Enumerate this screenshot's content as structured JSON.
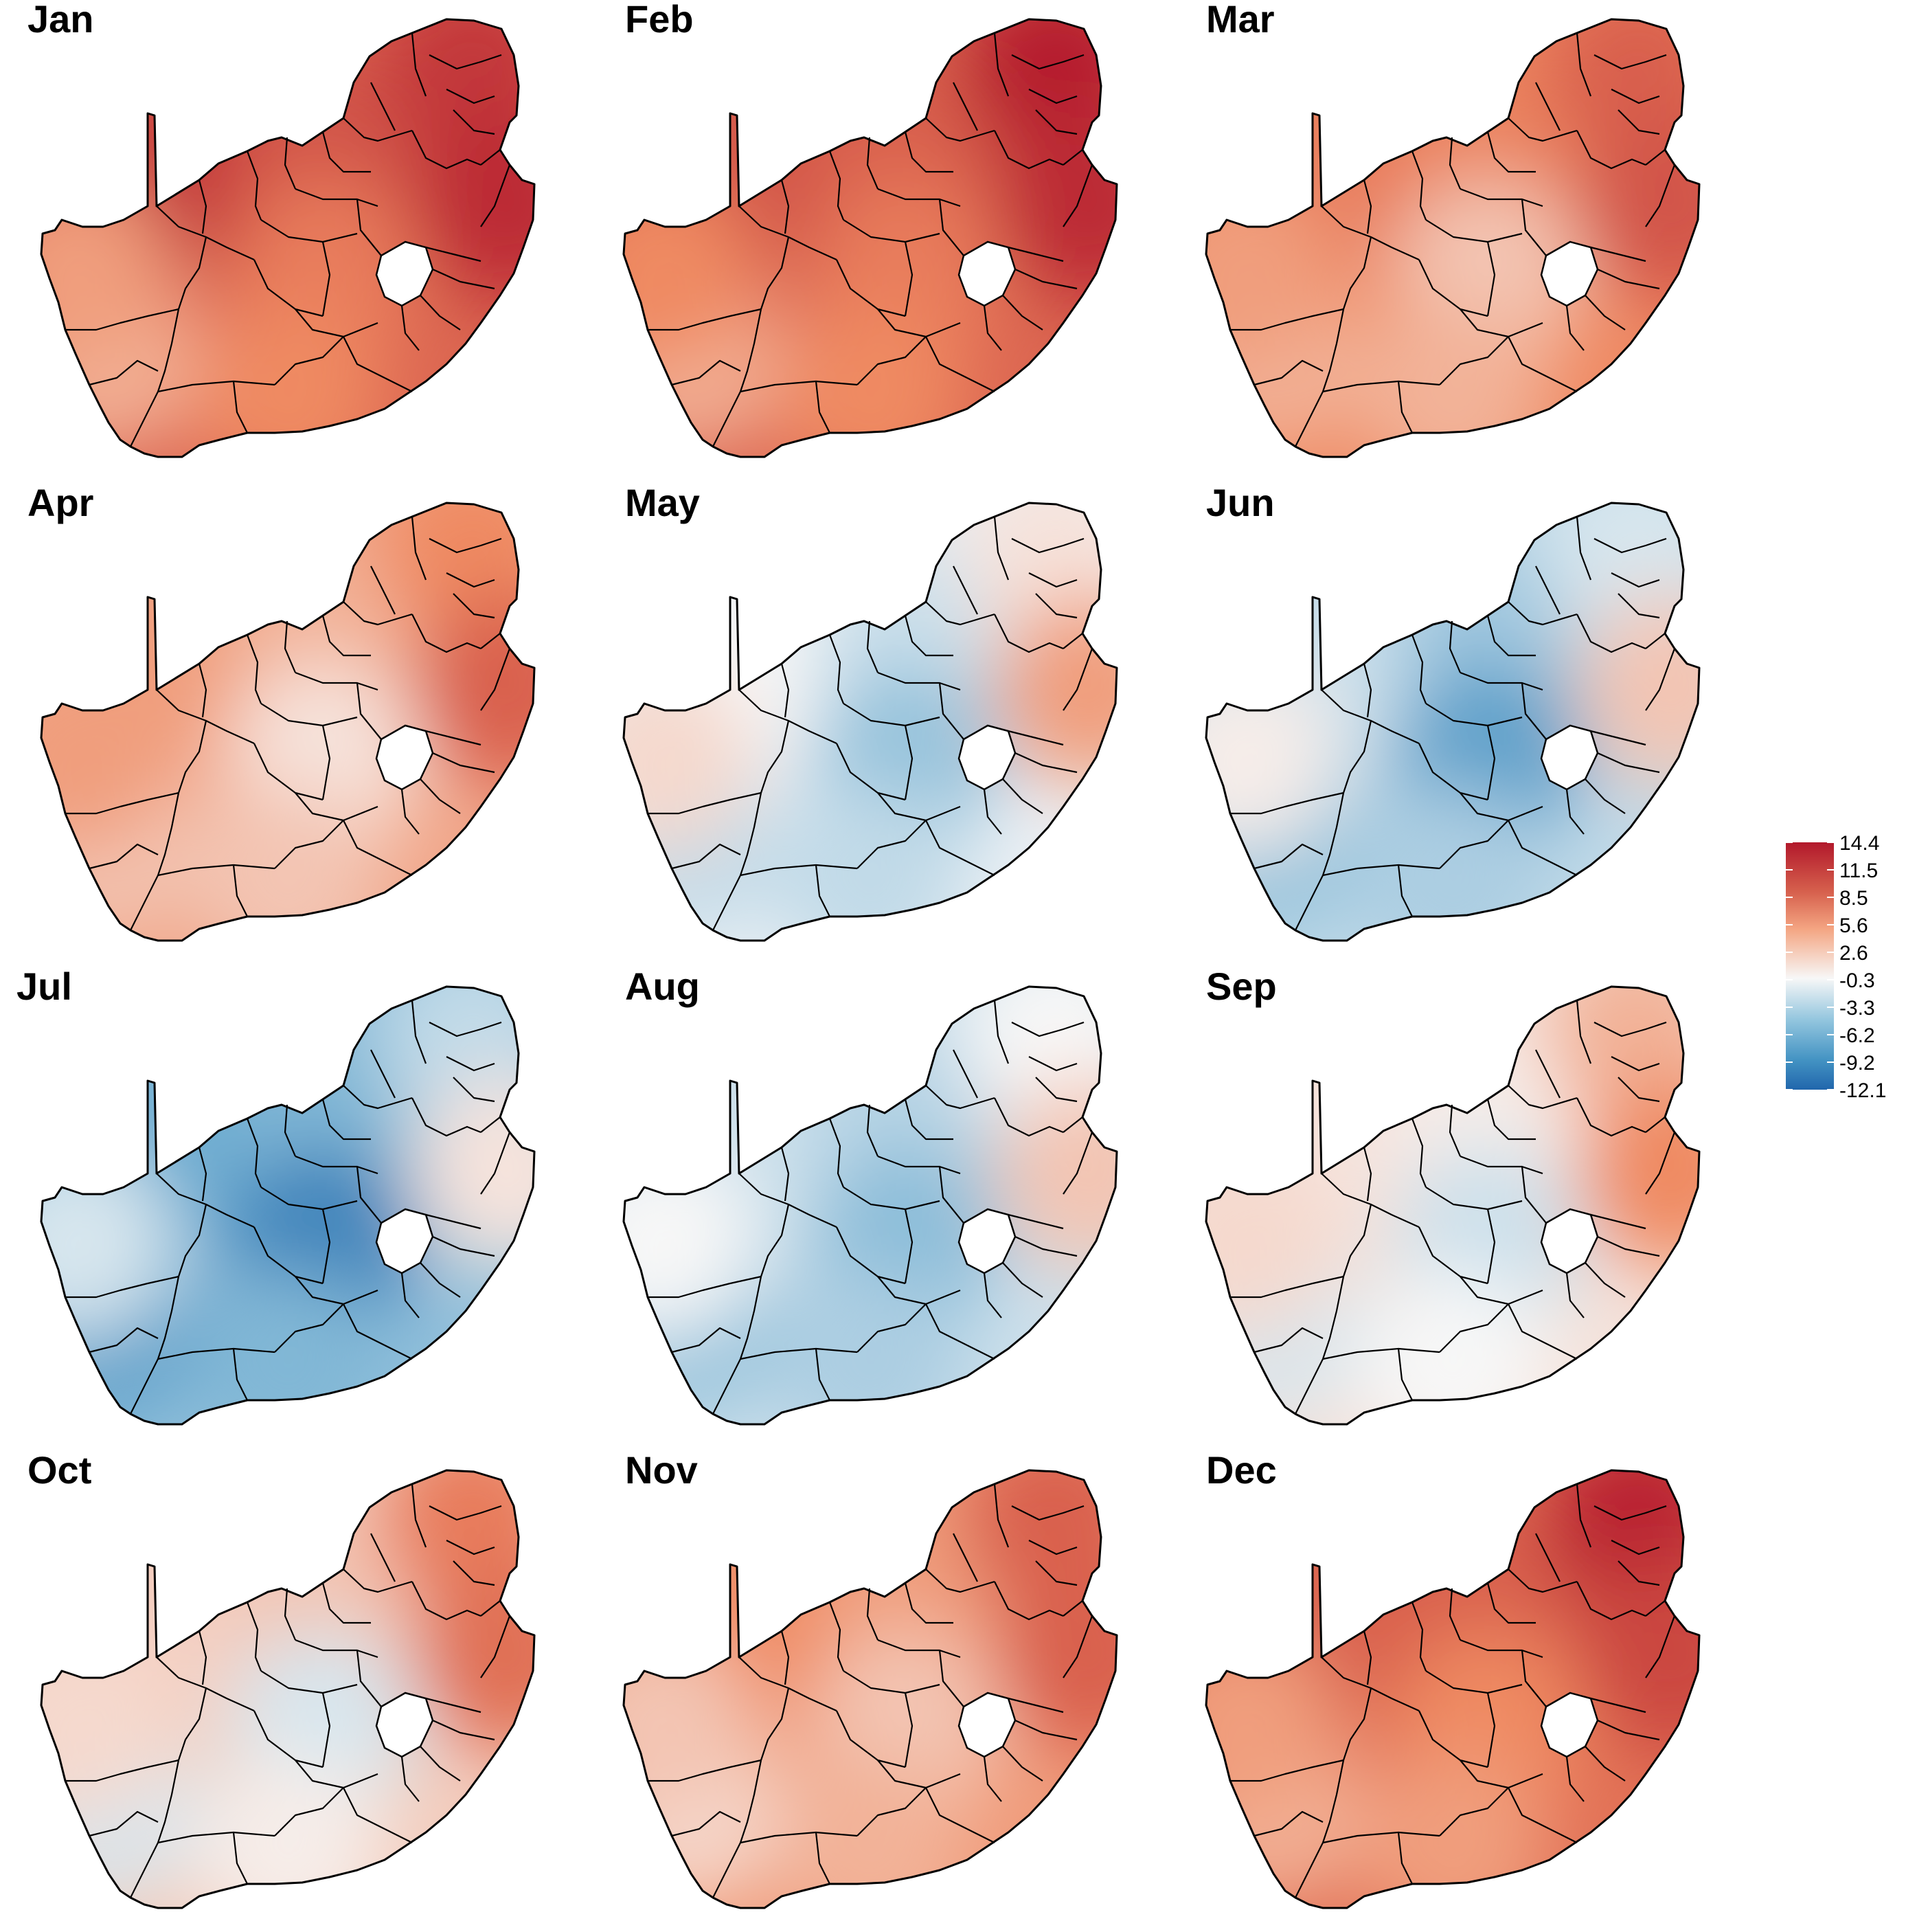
{
  "panels": [
    {
      "label": "Jan",
      "values": {
        "nw": 12.0,
        "n": 10.0,
        "ne": 12.0,
        "e": 13.0,
        "c": 7.0,
        "sw": 4.0,
        "s": 6.0,
        "w": 5.0
      }
    },
    {
      "label": "Feb",
      "values": {
        "nw": 10.0,
        "n": 9.0,
        "ne": 14.0,
        "e": 13.0,
        "c": 7.0,
        "sw": 4.0,
        "s": 6.0,
        "w": 6.0
      }
    },
    {
      "label": "Mar",
      "values": {
        "nw": 7.0,
        "n": 6.5,
        "ne": 9.0,
        "e": 10.0,
        "c": 3.0,
        "sw": 4.0,
        "s": 4.0,
        "w": 5.0
      }
    },
    {
      "label": "Apr",
      "values": {
        "nw": 5.0,
        "n": 4.0,
        "ne": 6.0,
        "e": 9.0,
        "c": 1.5,
        "sw": 3.0,
        "s": 3.0,
        "w": 5.0
      }
    },
    {
      "label": "May",
      "values": {
        "nw": 0.5,
        "n": -1.5,
        "ne": 1.5,
        "e": 5.0,
        "c": -4.0,
        "sw": -2.0,
        "s": -2.0,
        "w": 2.0
      }
    },
    {
      "label": "Jun",
      "values": {
        "nw": -1.5,
        "n": -3.5,
        "ne": -1.0,
        "e": 3.0,
        "c": -7.0,
        "sw": -4.0,
        "s": -3.0,
        "w": 1.0
      }
    },
    {
      "label": "Jul",
      "values": {
        "nw": -6.0,
        "n": -5.0,
        "ne": -2.0,
        "e": 1.5,
        "c": -9.5,
        "sw": -7.0,
        "s": -5.0,
        "w": -1.0
      }
    },
    {
      "label": "Aug",
      "values": {
        "nw": -1.5,
        "n": -2.5,
        "ne": 0.5,
        "e": 3.0,
        "c": -4.5,
        "sw": -4.0,
        "s": -3.0,
        "w": 0.5
      }
    },
    {
      "label": "Sep",
      "values": {
        "nw": 1.5,
        "n": 1.0,
        "ne": 4.0,
        "e": 6.0,
        "c": -1.5,
        "sw": -1.0,
        "s": 0.5,
        "w": 2.0
      }
    },
    {
      "label": "Oct",
      "values": {
        "nw": 2.5,
        "n": 3.0,
        "ne": 7.0,
        "e": 8.0,
        "c": -1.0,
        "sw": -1.0,
        "s": 1.0,
        "w": 2.0
      }
    },
    {
      "label": "Nov",
      "values": {
        "nw": 6.0,
        "n": 5.0,
        "ne": 9.0,
        "e": 9.0,
        "c": 3.0,
        "sw": 2.0,
        "s": 4.0,
        "w": 3.0
      }
    },
    {
      "label": "Dec",
      "values": {
        "nw": 9.0,
        "n": 9.0,
        "ne": 13.5,
        "e": 11.0,
        "c": 6.0,
        "sw": 4.0,
        "s": 5.0,
        "w": 5.0
      }
    }
  ],
  "legend": {
    "ticks": [
      "14.4",
      "11.5",
      "8.5",
      "5.6",
      "2.6",
      "-0.3",
      "-3.3",
      "-6.2",
      "-9.2",
      "-12.1"
    ],
    "max": 14.4,
    "min": -12.1
  },
  "colors": {
    "high": "#b2182b",
    "mid_high": "#ef8a62",
    "neutral": "#f7f7f7",
    "mid_low": "#67a9cf",
    "low": "#2166ac",
    "border": "#000000"
  }
}
